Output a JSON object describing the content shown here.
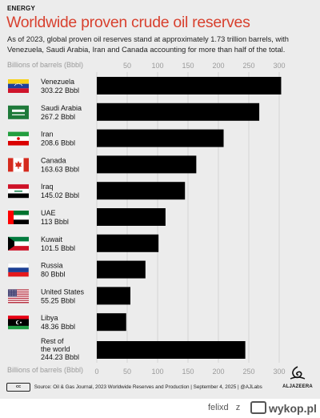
{
  "kicker": "ENERGY",
  "title": "Worldwide proven crude oil reserves",
  "subtitle": "As of 2023, global proven oil reserves stand at approximately 1.73 trillion barrels, with Venezuela, Saudi Arabia, Iran and Canada accounting for more than half of the total.",
  "footer": {
    "cc_label": "cc",
    "source": "Source: Oil & Gas Journal, 2023 Worldwide Reserves and Production  |  September 4, 2025  |  @AJLabs",
    "logo_text": "ALJAZEERA"
  },
  "watermark": {
    "user": "felixd",
    "separator": "z",
    "brand": "wykop.pl"
  },
  "colors": {
    "title": "#d8412f",
    "bar": "#000000",
    "background": "#ececec",
    "axis_text": "#9a9a9a"
  },
  "chart_data": {
    "type": "bar",
    "orientation": "horizontal",
    "xlabel": "Billions of barrels (Bbbl)",
    "xlim": [
      0,
      300
    ],
    "xticks": [
      0,
      50,
      100,
      150,
      200,
      250,
      300
    ],
    "grid": true,
    "categories": [
      "Venezuela",
      "Saudi Arabia",
      "Iran",
      "Canada",
      "Iraq",
      "UAE",
      "Kuwait",
      "Russia",
      "United States",
      "Libya",
      "Rest of the world"
    ],
    "value_labels": [
      "303.22 Bbbl",
      "267.2 Bbbl",
      "208.6 Bbbl",
      "163.63 Bbbl",
      "145.02 Bbbl",
      "113 Bbbl",
      "101.5 Bbbl",
      "80 Bbbl",
      "55.25 Bbbl",
      "48.36 Bbbl",
      "244.23 Bbbl"
    ],
    "values": [
      303.22,
      267.2,
      208.6,
      163.63,
      145.02,
      113,
      101.5,
      80,
      55.25,
      48.36,
      244.23
    ],
    "flags": [
      "venezuela-flag",
      "saudi-arabia-flag",
      "iran-flag",
      "canada-flag",
      "iraq-flag",
      "uae-flag",
      "kuwait-flag",
      "russia-flag",
      "united-states-flag",
      "libya-flag",
      "none"
    ]
  }
}
